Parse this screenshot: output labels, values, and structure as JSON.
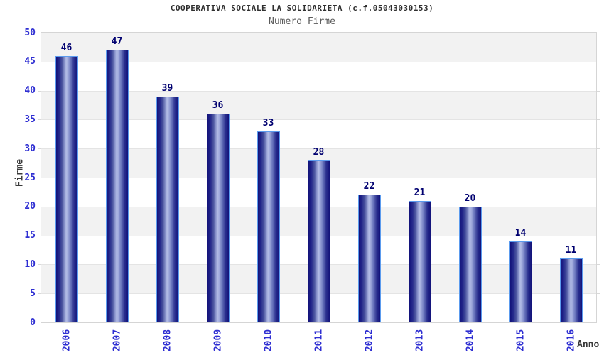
{
  "chart_data": {
    "type": "bar",
    "title": "COOPERATIVA SOCIALE LA SOLIDARIETA (c.f.05043030153)",
    "subtitle": "Numero Firme",
    "xlabel": "Anno",
    "ylabel": "Firme",
    "categories": [
      "2006",
      "2007",
      "2008",
      "2009",
      "2010",
      "2011",
      "2012",
      "2013",
      "2014",
      "2015",
      "2016"
    ],
    "values": [
      46,
      47,
      39,
      36,
      33,
      28,
      22,
      21,
      20,
      14,
      11
    ],
    "value_labels": [
      "46",
      "47",
      "39",
      "36",
      "33",
      "28",
      "22",
      "21",
      "20",
      "14",
      "11"
    ],
    "ylim": [
      0,
      50
    ],
    "ytick_step": 5,
    "yticks": [
      0,
      5,
      10,
      15,
      20,
      25,
      30,
      35,
      40,
      45,
      50
    ],
    "legend": "none",
    "grid": "alternating-horizontal-bands",
    "x_tick_rotation_degrees": -90,
    "colors": {
      "bar_dark": "#12127A",
      "bar_highlight": "#B2BCE6",
      "bar_border": "#5B9BEE",
      "tick_labels": "#2E2ED2",
      "value_labels": "#000070",
      "axis_titles": "#3A3A3A",
      "band_gray": "#F2F2F2",
      "band_white": "#FFFFFF",
      "plot_border": "#D5D5D5",
      "title_text": "#2F2F2F",
      "subtitle_text": "#5A5A5A"
    }
  }
}
